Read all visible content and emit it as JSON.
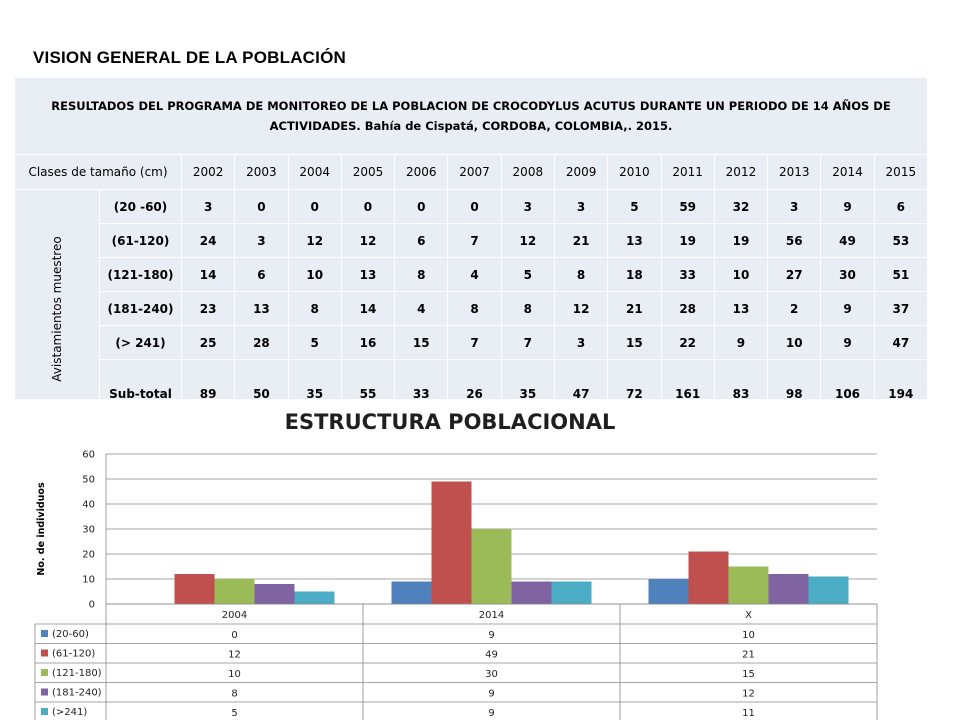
{
  "page_title": "VISION GENERAL DE LA POBLACIÓN",
  "table": {
    "caption_line1": "RESULTADOS DEL PROGRAMA DE MONITOREO DE LA POBLACION DE CROCODYLUS ACUTUS DURANTE UN PERIODO DE 14 AÑOS DE",
    "caption_line2": "ACTIVIDADES. Bahía de Cispatá, CORDOBA, COLOMBIA,. 2015.",
    "class_header": "Clases de tamaño (cm)",
    "years": [
      "2002",
      "2003",
      "2004",
      "2005",
      "2006",
      "2007",
      "2008",
      "2009",
      "2010",
      "2011",
      "2012",
      "2013",
      "2014",
      "2015"
    ],
    "group_label": "Avistamientos muestreo",
    "rows": [
      {
        "label": "(20 -60)",
        "values": [
          "3",
          "0",
          "0",
          "0",
          "0",
          "0",
          "3",
          "3",
          "5",
          "59",
          "32",
          "3",
          "9",
          "6"
        ]
      },
      {
        "label": "(61-120)",
        "values": [
          "24",
          "3",
          "12",
          "12",
          "6",
          "7",
          "12",
          "21",
          "13",
          "19",
          "19",
          "56",
          "49",
          "53"
        ]
      },
      {
        "label": "(121-180)",
        "values": [
          "14",
          "6",
          "10",
          "13",
          "8",
          "4",
          "5",
          "8",
          "18",
          "33",
          "10",
          "27",
          "30",
          "51"
        ]
      },
      {
        "label": "(181-240)",
        "values": [
          "23",
          "13",
          "8",
          "14",
          "4",
          "8",
          "8",
          "12",
          "21",
          "28",
          "13",
          "2",
          "9",
          "37"
        ]
      },
      {
        "label": "(> 241)",
        "values": [
          "25",
          "28",
          "5",
          "16",
          "15",
          "7",
          "7",
          "3",
          "15",
          "22",
          "9",
          "10",
          "9",
          "47"
        ]
      },
      {
        "label": "Sub-total",
        "values": [
          "89",
          "50",
          "35",
          "55",
          "33",
          "26",
          "35",
          "47",
          "72",
          "161",
          "83",
          "98",
          "106",
          "194"
        ]
      }
    ]
  },
  "chart_data": {
    "type": "bar",
    "title": "ESTRUCTURA POBLACIONAL",
    "ylabel": "No. de individuos",
    "xlabel": "",
    "categories": [
      "2004",
      "2014",
      "X"
    ],
    "ylim": [
      0,
      60
    ],
    "yticks": [
      0,
      10,
      20,
      30,
      40,
      50,
      60
    ],
    "grid": true,
    "legend": "data-table-below",
    "series": [
      {
        "name": "(20-60)",
        "color": "#4f81bd",
        "values": [
          0,
          9,
          10
        ]
      },
      {
        "name": "(61-120)",
        "color": "#c0504d",
        "values": [
          12,
          49,
          21
        ]
      },
      {
        "name": "(121-180)",
        "color": "#9bbb59",
        "values": [
          10,
          30,
          15
        ]
      },
      {
        "name": "(181-240)",
        "color": "#8064a2",
        "values": [
          8,
          9,
          12
        ]
      },
      {
        "name": "(>241)",
        "color": "#4bacc6",
        "values": [
          5,
          9,
          11
        ]
      }
    ]
  }
}
